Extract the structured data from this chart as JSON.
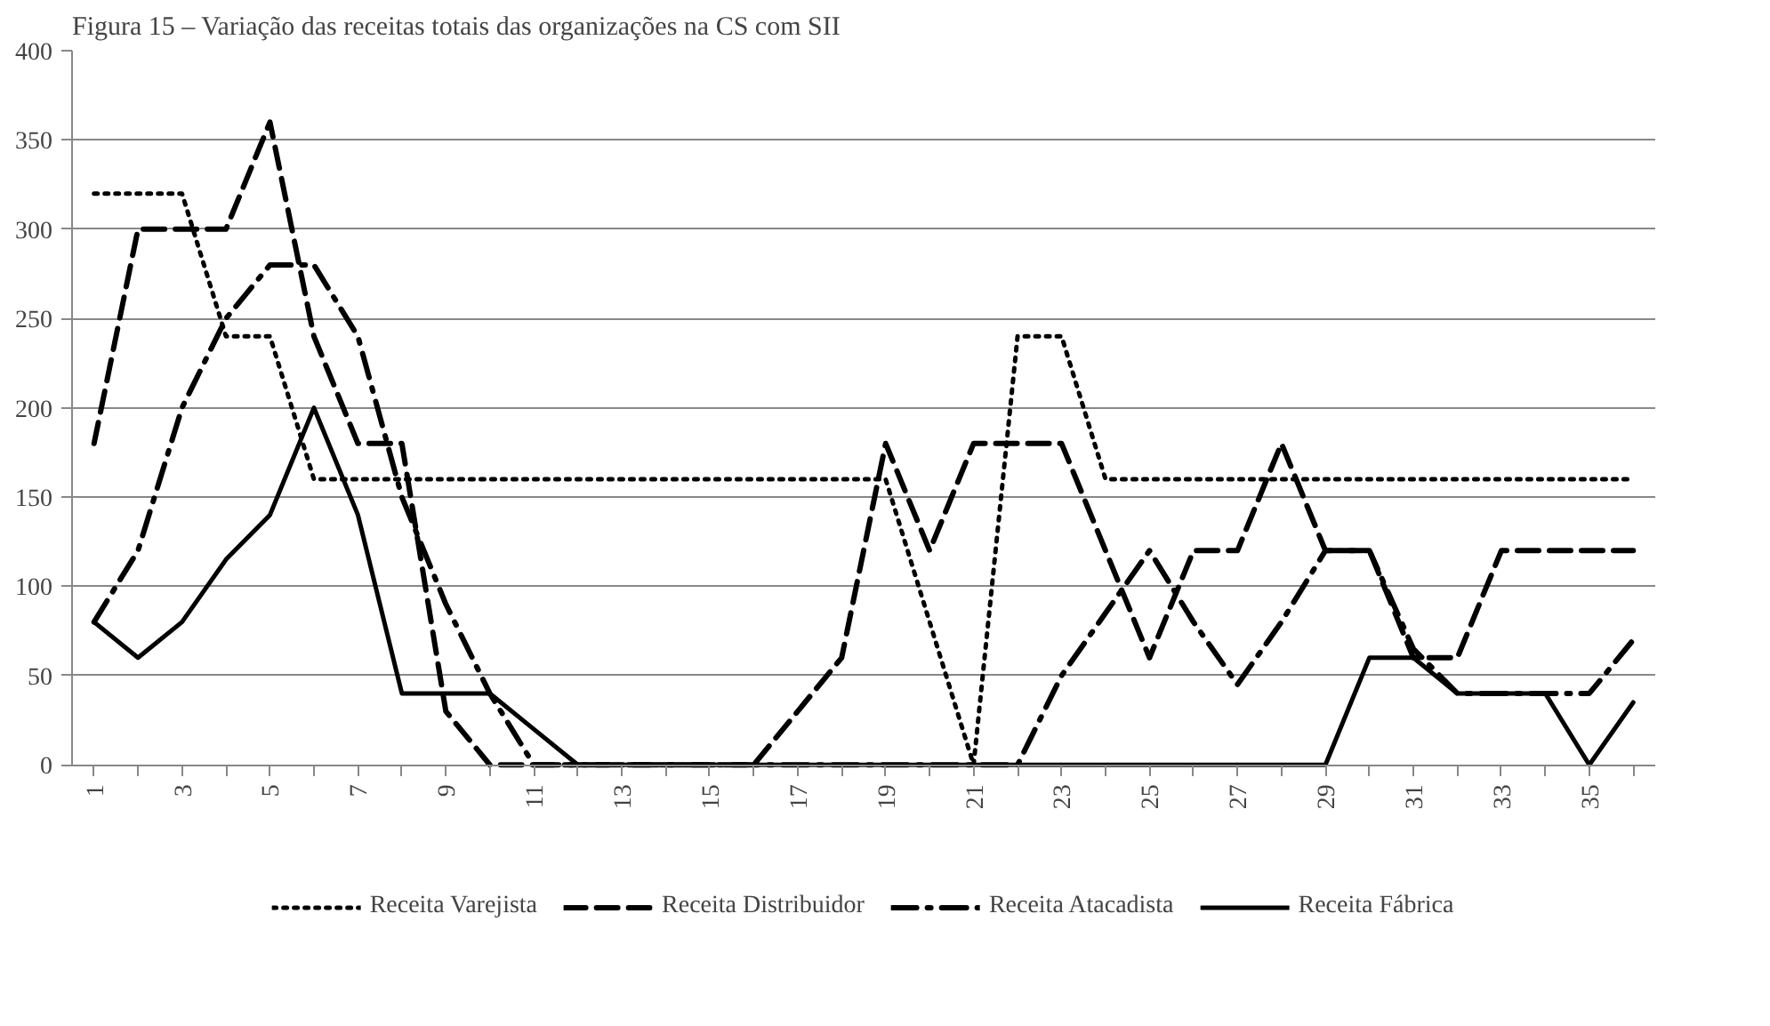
{
  "chart_data": {
    "type": "line",
    "title": "Figura 15 – Variação das receitas totais das organizações na CS com SII",
    "categories": [
      "1",
      null,
      "3",
      null,
      "5",
      null,
      "7",
      null,
      "9",
      null,
      "11",
      null,
      "13",
      null,
      "15",
      null,
      "17",
      null,
      "19",
      null,
      "21",
      null,
      "23",
      null,
      "25",
      null,
      "27",
      null,
      "29",
      null,
      "31",
      null,
      "33",
      null,
      "35",
      null
    ],
    "ylim": [
      0,
      400
    ],
    "yticks": [
      0,
      50,
      100,
      150,
      200,
      250,
      300,
      350,
      400
    ],
    "grid": "y",
    "legend": "bottom",
    "series": [
      {
        "name": "Receita Varejista",
        "color": "#000000",
        "line_style": "dotted",
        "values": [
          320,
          320,
          320,
          240,
          240,
          160,
          160,
          160,
          160,
          160,
          160,
          160,
          160,
          160,
          160,
          160,
          160,
          160,
          160,
          80,
          0,
          240,
          240,
          160,
          160,
          160,
          160,
          160,
          160,
          160,
          160,
          160,
          160,
          160,
          160,
          160
        ]
      },
      {
        "name": "Receita Distribuidor",
        "color": "#000000",
        "line_style": "dashed",
        "values": [
          180,
          300,
          300,
          300,
          360,
          240,
          180,
          180,
          30,
          0,
          0,
          0,
          0,
          0,
          0,
          0,
          30,
          60,
          180,
          120,
          180,
          180,
          180,
          120,
          60,
          120,
          120,
          180,
          120,
          120,
          60,
          60,
          120,
          120,
          120,
          120
        ]
      },
      {
        "name": "Receita Atacadista",
        "color": "#000000",
        "line_style": "dashdot",
        "values": [
          80,
          120,
          200,
          250,
          280,
          280,
          240,
          150,
          90,
          40,
          0,
          0,
          0,
          0,
          0,
          0,
          0,
          0,
          0,
          0,
          0,
          0,
          50,
          85,
          120,
          80,
          45,
          80,
          120,
          120,
          65,
          40,
          40,
          40,
          40,
          70
        ]
      },
      {
        "name": "Receita Fábrica",
        "color": "#000000",
        "line_style": "solid",
        "values": [
          80,
          60,
          80,
          115,
          140,
          200,
          140,
          40,
          40,
          40,
          20,
          0,
          0,
          0,
          0,
          0,
          0,
          0,
          0,
          0,
          0,
          0,
          0,
          0,
          0,
          0,
          0,
          0,
          0,
          60,
          60,
          40,
          40,
          40,
          0,
          35
        ]
      }
    ]
  }
}
